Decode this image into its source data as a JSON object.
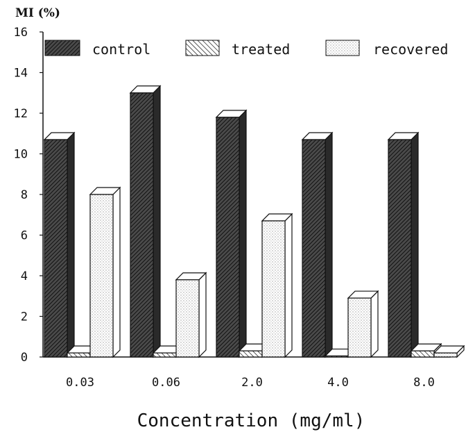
{
  "chart_data": {
    "type": "bar",
    "ylabel": "MI (%)",
    "xlabel": "Concentration (mg/ml)",
    "categories": [
      "0.03",
      "0.06",
      "2.0",
      "4.0",
      "8.0"
    ],
    "series": [
      {
        "name": "control",
        "values": [
          10.7,
          13.0,
          11.8,
          10.7,
          10.7
        ]
      },
      {
        "name": "treated",
        "values": [
          0.2,
          0.2,
          0.3,
          0.05,
          0.3
        ]
      },
      {
        "name": "recovered",
        "values": [
          8.0,
          3.8,
          6.7,
          2.9,
          0.2
        ]
      }
    ],
    "ylim": [
      0,
      16
    ],
    "yticks": [
      "0",
      "2",
      "4",
      "6",
      "8",
      "10",
      "12",
      "14",
      "16"
    ],
    "grid": false,
    "legend_position": "top"
  }
}
